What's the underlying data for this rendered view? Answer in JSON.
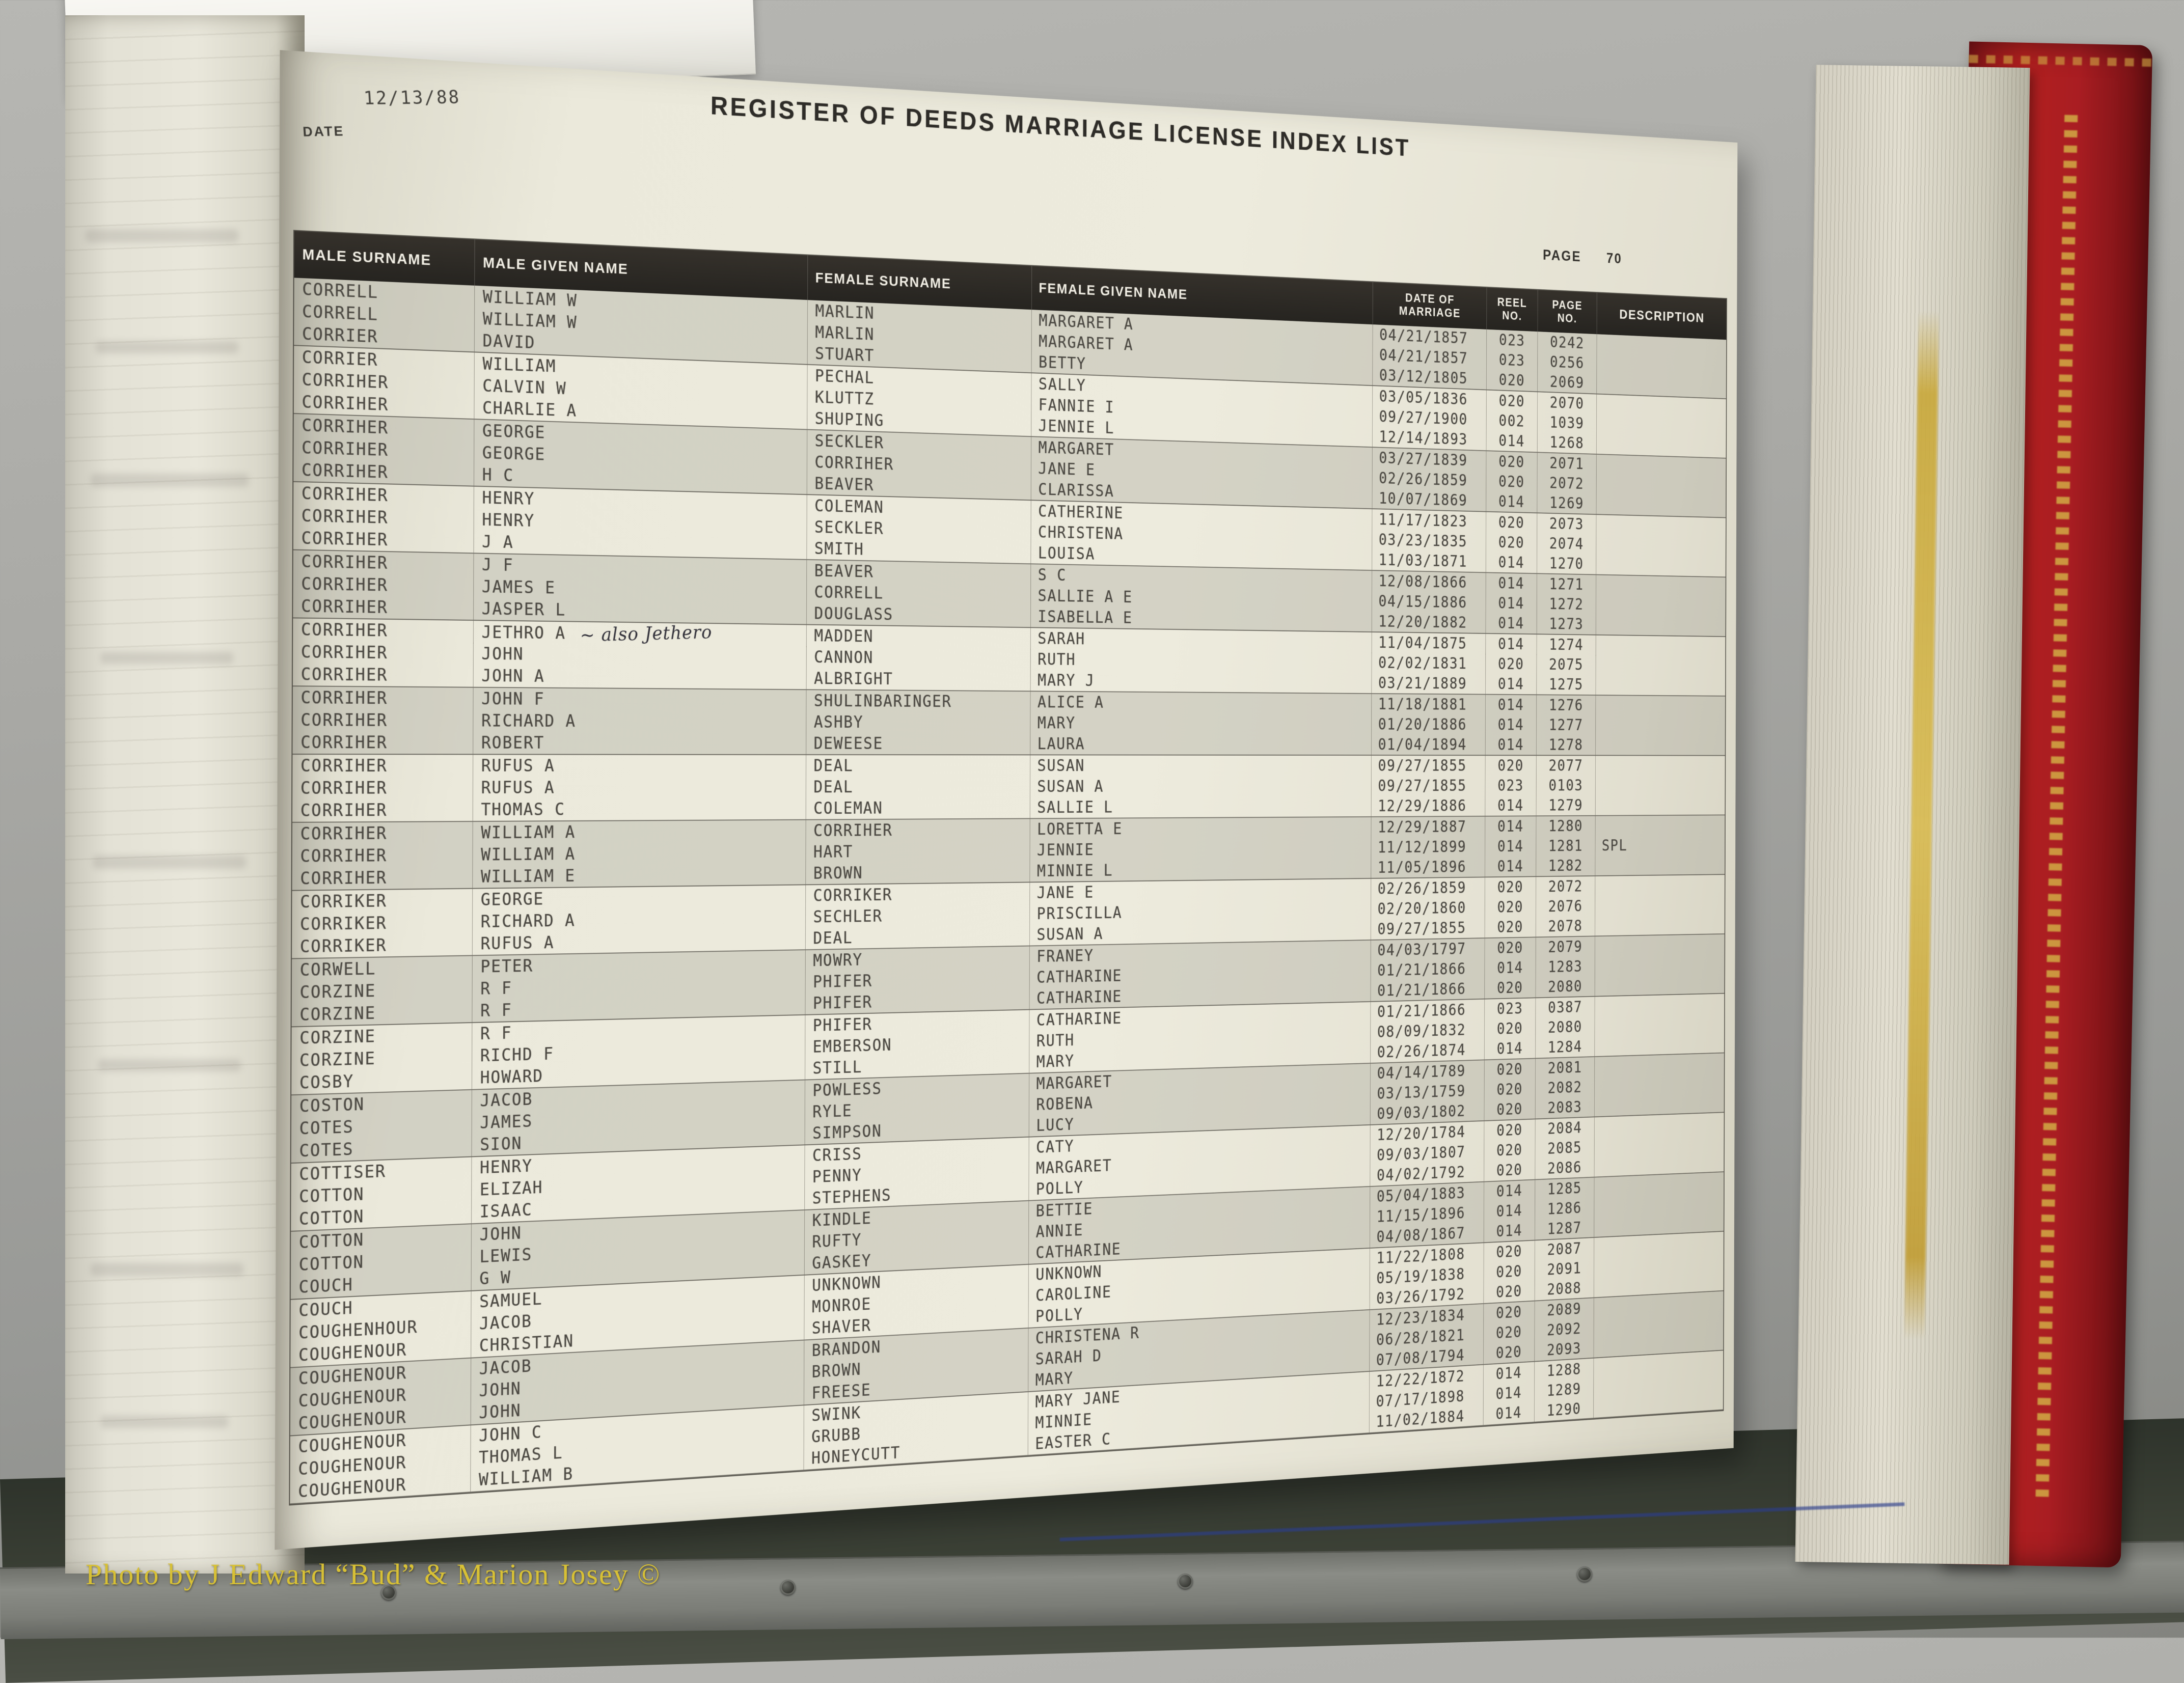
{
  "header": {
    "date_label": "DATE",
    "date_value": "12/13/88",
    "title": "REGISTER OF DEEDS MARRIAGE LICENSE INDEX LIST",
    "page_label": "PAGE",
    "page_number": "70"
  },
  "table": {
    "columns": [
      "MALE SURNAME",
      "MALE GIVEN NAME",
      "FEMALE SURNAME",
      "FEMALE GIVEN NAME",
      "DATE OF\nMARRIAGE",
      "REEL\nNO.",
      "PAGE\nNO.",
      "DESCRIPTION"
    ],
    "rows": [
      {
        "male_surname": "CORRELL",
        "male_given": "WILLIAM W",
        "note": "",
        "female_surname": "MARLIN",
        "female_given": "MARGARET A",
        "date": "04/21/1857",
        "reel": "023",
        "page": "0242",
        "description": ""
      },
      {
        "male_surname": "CORRELL",
        "male_given": "WILLIAM W",
        "note": "",
        "female_surname": "MARLIN",
        "female_given": "MARGARET A",
        "date": "04/21/1857",
        "reel": "023",
        "page": "0256",
        "description": ""
      },
      {
        "male_surname": "CORRIER",
        "male_given": "DAVID",
        "note": "",
        "female_surname": "STUART",
        "female_given": "BETTY",
        "date": "03/12/1805",
        "reel": "020",
        "page": "2069",
        "description": ""
      },
      {
        "male_surname": "CORRIER",
        "male_given": "WILLIAM",
        "note": "",
        "female_surname": "PECHAL",
        "female_given": "SALLY",
        "date": "03/05/1836",
        "reel": "020",
        "page": "2070",
        "description": ""
      },
      {
        "male_surname": "CORRIHER",
        "male_given": "CALVIN W",
        "note": "",
        "female_surname": "KLUTTZ",
        "female_given": "FANNIE I",
        "date": "09/27/1900",
        "reel": "002",
        "page": "1039",
        "description": ""
      },
      {
        "male_surname": "CORRIHER",
        "male_given": "CHARLIE A",
        "note": "",
        "female_surname": "SHUPING",
        "female_given": "JENNIE L",
        "date": "12/14/1893",
        "reel": "014",
        "page": "1268",
        "description": ""
      },
      {
        "male_surname": "CORRIHER",
        "male_given": "GEORGE",
        "note": "",
        "female_surname": "SECKLER",
        "female_given": "MARGARET",
        "date": "03/27/1839",
        "reel": "020",
        "page": "2071",
        "description": ""
      },
      {
        "male_surname": "CORRIHER",
        "male_given": "GEORGE",
        "note": "",
        "female_surname": "CORRIHER",
        "female_given": "JANE E",
        "date": "02/26/1859",
        "reel": "020",
        "page": "2072",
        "description": ""
      },
      {
        "male_surname": "CORRIHER",
        "male_given": "H C",
        "note": "",
        "female_surname": "BEAVER",
        "female_given": "CLARISSA",
        "date": "10/07/1869",
        "reel": "014",
        "page": "1269",
        "description": ""
      },
      {
        "male_surname": "CORRIHER",
        "male_given": "HENRY",
        "note": "",
        "female_surname": "COLEMAN",
        "female_given": "CATHERINE",
        "date": "11/17/1823",
        "reel": "020",
        "page": "2073",
        "description": ""
      },
      {
        "male_surname": "CORRIHER",
        "male_given": "HENRY",
        "note": "",
        "female_surname": "SECKLER",
        "female_given": "CHRISTENA",
        "date": "03/23/1835",
        "reel": "020",
        "page": "2074",
        "description": ""
      },
      {
        "male_surname": "CORRIHER",
        "male_given": "J A",
        "note": "",
        "female_surname": "SMITH",
        "female_given": "LOUISA",
        "date": "11/03/1871",
        "reel": "014",
        "page": "1270",
        "description": ""
      },
      {
        "male_surname": "CORRIHER",
        "male_given": "J F",
        "note": "",
        "female_surname": "BEAVER",
        "female_given": "S C",
        "date": "12/08/1866",
        "reel": "014",
        "page": "1271",
        "description": ""
      },
      {
        "male_surname": "CORRIHER",
        "male_given": "JAMES E",
        "note": "",
        "female_surname": "CORRELL",
        "female_given": "SALLIE A E",
        "date": "04/15/1886",
        "reel": "014",
        "page": "1272",
        "description": ""
      },
      {
        "male_surname": "CORRIHER",
        "male_given": "JASPER L",
        "note": "",
        "female_surname": "DOUGLASS",
        "female_given": "ISABELLA E",
        "date": "12/20/1882",
        "reel": "014",
        "page": "1273",
        "description": ""
      },
      {
        "male_surname": "CORRIHER",
        "male_given": "JETHRO A",
        "note": "~ also Jethero",
        "female_surname": "MADDEN",
        "female_given": "SARAH",
        "date": "11/04/1875",
        "reel": "014",
        "page": "1274",
        "description": ""
      },
      {
        "male_surname": "CORRIHER",
        "male_given": "JOHN",
        "note": "",
        "female_surname": "CANNON",
        "female_given": "RUTH",
        "date": "02/02/1831",
        "reel": "020",
        "page": "2075",
        "description": ""
      },
      {
        "male_surname": "CORRIHER",
        "male_given": "JOHN A",
        "note": "",
        "female_surname": "ALBRIGHT",
        "female_given": "MARY J",
        "date": "03/21/1889",
        "reel": "014",
        "page": "1275",
        "description": ""
      },
      {
        "male_surname": "CORRIHER",
        "male_given": "JOHN F",
        "note": "",
        "female_surname": "SHULINBARINGER",
        "female_given": "ALICE A",
        "date": "11/18/1881",
        "reel": "014",
        "page": "1276",
        "description": ""
      },
      {
        "male_surname": "CORRIHER",
        "male_given": "RICHARD A",
        "note": "",
        "female_surname": "ASHBY",
        "female_given": "MARY",
        "date": "01/20/1886",
        "reel": "014",
        "page": "1277",
        "description": ""
      },
      {
        "male_surname": "CORRIHER",
        "male_given": "ROBERT",
        "note": "",
        "female_surname": "DEWEESE",
        "female_given": "LAURA",
        "date": "01/04/1894",
        "reel": "014",
        "page": "1278",
        "description": ""
      },
      {
        "male_surname": "CORRIHER",
        "male_given": "RUFUS A",
        "note": "",
        "female_surname": "DEAL",
        "female_given": "SUSAN",
        "date": "09/27/1855",
        "reel": "020",
        "page": "2077",
        "description": ""
      },
      {
        "male_surname": "CORRIHER",
        "male_given": "RUFUS A",
        "note": "",
        "female_surname": "DEAL",
        "female_given": "SUSAN A",
        "date": "09/27/1855",
        "reel": "023",
        "page": "0103",
        "description": ""
      },
      {
        "male_surname": "CORRIHER",
        "male_given": "THOMAS C",
        "note": "",
        "female_surname": "COLEMAN",
        "female_given": "SALLIE L",
        "date": "12/29/1886",
        "reel": "014",
        "page": "1279",
        "description": ""
      },
      {
        "male_surname": "CORRIHER",
        "male_given": "WILLIAM A",
        "note": "",
        "female_surname": "CORRIHER",
        "female_given": "LORETTA E",
        "date": "12/29/1887",
        "reel": "014",
        "page": "1280",
        "description": ""
      },
      {
        "male_surname": "CORRIHER",
        "male_given": "WILLIAM A",
        "note": "",
        "female_surname": "HART",
        "female_given": "JENNIE",
        "date": "11/12/1899",
        "reel": "014",
        "page": "1281",
        "description": "SPL"
      },
      {
        "male_surname": "CORRIHER",
        "male_given": "WILLIAM E",
        "note": "",
        "female_surname": "BROWN",
        "female_given": "MINNIE L",
        "date": "11/05/1896",
        "reel": "014",
        "page": "1282",
        "description": ""
      },
      {
        "male_surname": "CORRIKER",
        "male_given": "GEORGE",
        "note": "",
        "female_surname": "CORRIKER",
        "female_given": "JANE E",
        "date": "02/26/1859",
        "reel": "020",
        "page": "2072",
        "description": ""
      },
      {
        "male_surname": "CORRIKER",
        "male_given": "RICHARD A",
        "note": "",
        "female_surname": "SECHLER",
        "female_given": "PRISCILLA",
        "date": "02/20/1860",
        "reel": "020",
        "page": "2076",
        "description": ""
      },
      {
        "male_surname": "CORRIKER",
        "male_given": "RUFUS A",
        "note": "",
        "female_surname": "DEAL",
        "female_given": "SUSAN A",
        "date": "09/27/1855",
        "reel": "020",
        "page": "2078",
        "description": ""
      },
      {
        "male_surname": "CORWELL",
        "male_given": "PETER",
        "note": "",
        "female_surname": "MOWRY",
        "female_given": "FRANEY",
        "date": "04/03/1797",
        "reel": "020",
        "page": "2079",
        "description": ""
      },
      {
        "male_surname": "CORZINE",
        "male_given": "R F",
        "note": "",
        "female_surname": "PHIFER",
        "female_given": "CATHARINE",
        "date": "01/21/1866",
        "reel": "014",
        "page": "1283",
        "description": ""
      },
      {
        "male_surname": "CORZINE",
        "male_given": "R F",
        "note": "",
        "female_surname": "PHIFER",
        "female_given": "CATHARINE",
        "date": "01/21/1866",
        "reel": "020",
        "page": "2080",
        "description": ""
      },
      {
        "male_surname": "CORZINE",
        "male_given": "R F",
        "note": "",
        "female_surname": "PHIFER",
        "female_given": "CATHARINE",
        "date": "01/21/1866",
        "reel": "023",
        "page": "0387",
        "description": ""
      },
      {
        "male_surname": "CORZINE",
        "male_given": "RICHD F",
        "note": "",
        "female_surname": "EMBERSON",
        "female_given": "RUTH",
        "date": "08/09/1832",
        "reel": "020",
        "page": "2080",
        "description": ""
      },
      {
        "male_surname": "COSBY",
        "male_given": "HOWARD",
        "note": "",
        "female_surname": "STILL",
        "female_given": "MARY",
        "date": "02/26/1874",
        "reel": "014",
        "page": "1284",
        "description": ""
      },
      {
        "male_surname": "COSTON",
        "male_given": "JACOB",
        "note": "",
        "female_surname": "POWLESS",
        "female_given": "MARGARET",
        "date": "04/14/1789",
        "reel": "020",
        "page": "2081",
        "description": ""
      },
      {
        "male_surname": "COTES",
        "male_given": "JAMES",
        "note": "",
        "female_surname": "RYLE",
        "female_given": "ROBENA",
        "date": "03/13/1759",
        "reel": "020",
        "page": "2082",
        "description": ""
      },
      {
        "male_surname": "COTES",
        "male_given": "SION",
        "note": "",
        "female_surname": "SIMPSON",
        "female_given": "LUCY",
        "date": "09/03/1802",
        "reel": "020",
        "page": "2083",
        "description": ""
      },
      {
        "male_surname": "COTTISER",
        "male_given": "HENRY",
        "note": "",
        "female_surname": "CRISS",
        "female_given": "CATY",
        "date": "12/20/1784",
        "reel": "020",
        "page": "2084",
        "description": ""
      },
      {
        "male_surname": "COTTON",
        "male_given": "ELIZAH",
        "note": "",
        "female_surname": "PENNY",
        "female_given": "MARGARET",
        "date": "09/03/1807",
        "reel": "020",
        "page": "2085",
        "description": ""
      },
      {
        "male_surname": "COTTON",
        "male_given": "ISAAC",
        "note": "",
        "female_surname": "STEPHENS",
        "female_given": "POLLY",
        "date": "04/02/1792",
        "reel": "020",
        "page": "2086",
        "description": ""
      },
      {
        "male_surname": "COTTON",
        "male_given": "JOHN",
        "note": "",
        "female_surname": "KINDLE",
        "female_given": "BETTIE",
        "date": "05/04/1883",
        "reel": "014",
        "page": "1285",
        "description": ""
      },
      {
        "male_surname": "COTTON",
        "male_given": "LEWIS",
        "note": "",
        "female_surname": "RUFTY",
        "female_given": "ANNIE",
        "date": "11/15/1896",
        "reel": "014",
        "page": "1286",
        "description": ""
      },
      {
        "male_surname": "COUCH",
        "male_given": "G W",
        "note": "",
        "female_surname": "GASKEY",
        "female_given": "CATHARINE",
        "date": "04/08/1867",
        "reel": "014",
        "page": "1287",
        "description": ""
      },
      {
        "male_surname": "COUCH",
        "male_given": "SAMUEL",
        "note": "",
        "female_surname": "UNKNOWN",
        "female_given": "UNKNOWN",
        "date": "11/22/1808",
        "reel": "020",
        "page": "2087",
        "description": ""
      },
      {
        "male_surname": "COUGHENHOUR",
        "male_given": "JACOB",
        "note": "",
        "female_surname": "MONROE",
        "female_given": "CAROLINE",
        "date": "05/19/1838",
        "reel": "020",
        "page": "2091",
        "description": ""
      },
      {
        "male_surname": "COUGHENOUR",
        "male_given": "CHRISTIAN",
        "note": "",
        "female_surname": "SHAVER",
        "female_given": "POLLY",
        "date": "03/26/1792",
        "reel": "020",
        "page": "2088",
        "description": ""
      },
      {
        "male_surname": "COUGHENOUR",
        "male_given": "JACOB",
        "note": "",
        "female_surname": "BRANDON",
        "female_given": "CHRISTENA R",
        "date": "12/23/1834",
        "reel": "020",
        "page": "2089",
        "description": ""
      },
      {
        "male_surname": "COUGHENOUR",
        "male_given": "JOHN",
        "note": "",
        "female_surname": "BROWN",
        "female_given": "SARAH D",
        "date": "06/28/1821",
        "reel": "020",
        "page": "2092",
        "description": ""
      },
      {
        "male_surname": "COUGHENOUR",
        "male_given": "JOHN",
        "note": "",
        "female_surname": "FREESE",
        "female_given": "MARY",
        "date": "07/08/1794",
        "reel": "020",
        "page": "2093",
        "description": ""
      },
      {
        "male_surname": "COUGHENOUR",
        "male_given": "JOHN C",
        "note": "",
        "female_surname": "SWINK",
        "female_given": "MARY JANE",
        "date": "12/22/1872",
        "reel": "014",
        "page": "1288",
        "description": ""
      },
      {
        "male_surname": "COUGHENOUR",
        "male_given": "THOMAS L",
        "note": "",
        "female_surname": "GRUBB",
        "female_given": "MINNIE",
        "date": "07/17/1898",
        "reel": "014",
        "page": "1289",
        "description": ""
      },
      {
        "male_surname": "COUGHENOUR",
        "male_given": "WILLIAM B",
        "note": "",
        "female_surname": "HONEYCUTT",
        "female_given": "EASTER C",
        "date": "11/02/1884",
        "reel": "014",
        "page": "1290",
        "description": ""
      }
    ]
  },
  "watermark": {
    "text": "Photo by J Edward “Bud” & Marion Josey ©"
  }
}
